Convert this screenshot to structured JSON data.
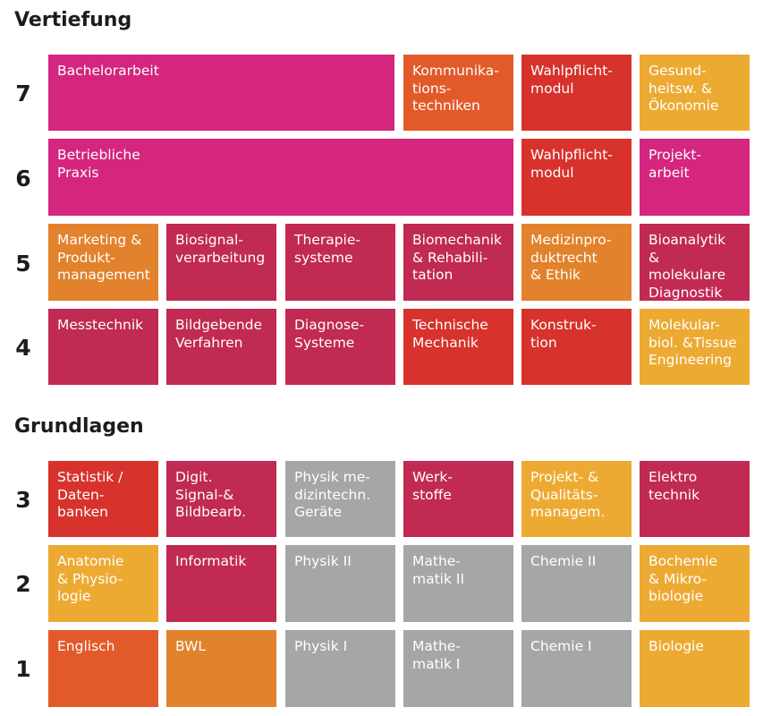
{
  "sections": {
    "vertiefung": "Vertiefung",
    "grundlagen": "Grundlagen"
  },
  "colors": {
    "magenta": "#d4267f",
    "crimson": "#c12a52",
    "red": "#d7322c",
    "orange_red": "#e35a2a",
    "orange": "#e2822c",
    "amber": "#edaa33",
    "gray": "#a6a6a6"
  },
  "semesters": {
    "s7": {
      "label": "7",
      "modules": [
        "Bachelorarbeit",
        "Kommunika-\ntions-\ntechniken",
        "Wahlpflicht-\nmodul",
        "Gesund-\nheitsw. &\nÖkonomie"
      ]
    },
    "s6": {
      "label": "6",
      "modules": [
        "Betriebliche\nPraxis",
        "Wahlpflicht-\nmodul",
        "Projekt-\narbeit"
      ]
    },
    "s5": {
      "label": "5",
      "modules": [
        "Marketing &\nProdukt-\nmanagement",
        "Biosignal-\nverarbeitung",
        "Therapie-\nsysteme",
        "Biomechanik\n& Rehabili-\ntation",
        "Medizinpro-\nduktrecht\n& Ethik",
        "Bioanalytik\n& molekulare\nDiagnostik"
      ]
    },
    "s4": {
      "label": "4",
      "modules": [
        "Messtechnik",
        "Bildgebende\nVerfahren",
        "Diagnose-\nSysteme",
        "Technische\nMechanik",
        "Konstruk-\ntion",
        "Molekular-\nbiol. &Tissue\nEngineering"
      ]
    },
    "s3": {
      "label": "3",
      "modules": [
        "Statistik /\nDaten-\nbanken",
        "Digit.\nSignal-&\nBildbearb.",
        "Physik me-\ndizintechn.\nGeräte",
        "Werk-\nstoffe",
        "Projekt- &\nQualitäts-\nmanagem.",
        "Elektro\ntechnik"
      ]
    },
    "s2": {
      "label": "2",
      "modules": [
        "Anatomie\n& Physio-\nlogie",
        "Informatik",
        "Physik II",
        "Mathe-\nmatik II",
        "Chemie II",
        "Bochemie\n& Mikro-\nbiologie"
      ]
    },
    "s1": {
      "label": "1",
      "modules": [
        "Englisch",
        "BWL",
        "Physik I",
        "Mathe-\nmatik I",
        "Chemie I",
        "Biologie"
      ]
    }
  }
}
